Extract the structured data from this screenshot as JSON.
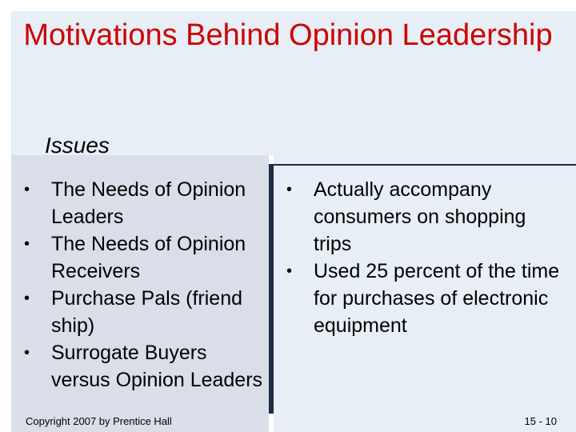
{
  "slide": {
    "title": "Motivations Behind Opinion Leadership",
    "heading": "Issues",
    "left_bullets": [
      "The Needs of Opinion Leaders",
      "The Needs of Opinion Receivers",
      "Purchase Pals (friend ship)",
      "Surrogate Buyers versus Opinion Leaders"
    ],
    "right_bullets": [
      "Actually accompany consumers on shopping trips",
      "Used 25 percent of the time for purchases of electronic equipment"
    ],
    "bullet_glyph": "•"
  },
  "footer": {
    "copyright": "Copyright 2007 by Prentice Hall",
    "page_number": "15 - 10"
  },
  "colors": {
    "title": "#cc0000",
    "title_panel": "#e8eef6",
    "left_panel": "#d9dee8",
    "divider": "#1f2a44"
  }
}
